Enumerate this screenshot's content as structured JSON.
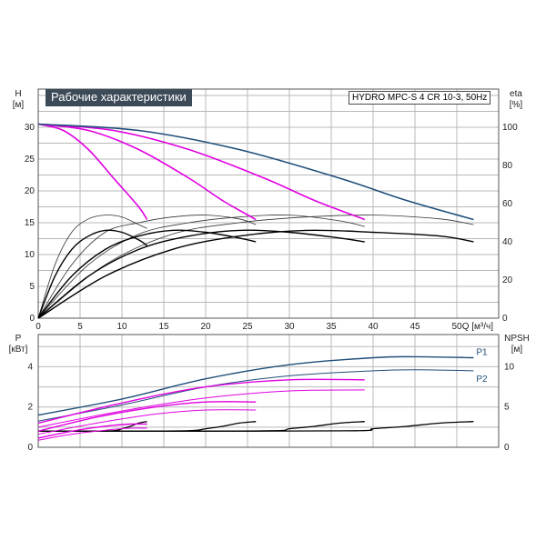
{
  "chart_data": [
    {
      "type": "line",
      "title": "Рабочие характеристики",
      "model": "HYDRO MPC-S 4 CR 10-3, 50Hz",
      "ylabel": "H",
      "yunit": "[м]",
      "y2label": "eta",
      "y2unit": "[%]",
      "xlabel": "Q",
      "xunit": "[м³/ч]",
      "xlim": [
        0,
        55
      ],
      "ylim": [
        0,
        36
      ],
      "y2lim": [
        0,
        120
      ],
      "xticks": [
        0,
        5,
        10,
        15,
        20,
        25,
        30,
        35,
        40,
        45,
        50
      ],
      "yticks": [
        0,
        5,
        10,
        15,
        20,
        25,
        30
      ],
      "y2ticks": [
        0,
        20,
        40,
        60,
        80,
        100
      ],
      "grid": true,
      "colors": {
        "head_full": "#1f4e79",
        "head_partial": "#e000e0",
        "efficiency": "#000000",
        "efficiency_thin": "#333333"
      },
      "head_curves": [
        {
          "pumps": 1,
          "x": [
            0,
            3,
            6,
            9,
            12,
            13
          ],
          "y": [
            30.5,
            29.5,
            26.5,
            22,
            17.5,
            15.5
          ]
        },
        {
          "pumps": 2,
          "x": [
            0,
            6,
            12,
            18,
            22,
            26
          ],
          "y": [
            30.5,
            29.5,
            26.5,
            22,
            18.5,
            15.5
          ]
        },
        {
          "pumps": 3,
          "x": [
            0,
            9,
            18,
            27,
            33,
            39
          ],
          "y": [
            30.5,
            29.5,
            26.5,
            22,
            18.5,
            15.5
          ]
        },
        {
          "pumps": 4,
          "x": [
            0,
            12,
            24,
            36,
            44,
            52
          ],
          "y": [
            30.5,
            29.5,
            26.5,
            22,
            18.5,
            15.5
          ]
        }
      ],
      "efficiency_curves": [
        {
          "pumps": 1,
          "x": [
            0,
            2,
            4,
            6,
            8,
            10,
            12,
            13
          ],
          "y": [
            0,
            22,
            36,
            43,
            46,
            45,
            41,
            38
          ]
        },
        {
          "pumps": 2,
          "x": [
            0,
            4,
            8,
            12,
            16,
            20,
            24,
            26
          ],
          "y": [
            0,
            22,
            36,
            43,
            46,
            45,
            42,
            40
          ]
        },
        {
          "pumps": 3,
          "x": [
            0,
            6,
            12,
            18,
            24,
            30,
            36,
            39
          ],
          "y": [
            0,
            22,
            36,
            43,
            46,
            45,
            42,
            40
          ]
        },
        {
          "pumps": 4,
          "x": [
            0,
            8,
            16,
            24,
            32,
            40,
            48,
            52
          ],
          "y": [
            0,
            22,
            36,
            43,
            46,
            45,
            43,
            40
          ]
        }
      ],
      "efficiency_thin_curves": [
        {
          "x": [
            0,
            2,
            4,
            6,
            8,
            10,
            12,
            13
          ],
          "y": [
            0,
            28,
            45,
            52,
            54,
            53,
            49,
            47
          ]
        },
        {
          "x": [
            0,
            4,
            8,
            12,
            16,
            20,
            24,
            26
          ],
          "y": [
            0,
            28,
            45,
            50,
            53,
            54,
            52,
            49
          ]
        },
        {
          "x": [
            0,
            6,
            12,
            18,
            24,
            30,
            36,
            39
          ],
          "y": [
            0,
            28,
            44,
            50,
            53,
            54,
            51,
            48
          ]
        },
        {
          "x": [
            0,
            8,
            16,
            24,
            32,
            40,
            48,
            52
          ],
          "y": [
            0,
            28,
            44,
            50,
            53,
            54,
            52,
            49
          ]
        }
      ]
    },
    {
      "type": "line",
      "ylabel": "P",
      "yunit": "[кВт]",
      "y2label": "NPSH",
      "y2unit": "[м]",
      "xlim": [
        0,
        55
      ],
      "ylim": [
        0,
        5.6
      ],
      "y2lim": [
        0,
        14
      ],
      "yticks": [
        0,
        2,
        4
      ],
      "y2ticks": [
        0,
        5,
        10
      ],
      "grid": true,
      "series_labels": [
        "P1",
        "P2"
      ],
      "colors": {
        "power_full": "#1f4e79",
        "power_partial": "#e000e0",
        "npsh": "#000000"
      },
      "p1_curves": [
        {
          "pumps": 4,
          "x": [
            0,
            10,
            20,
            30,
            40,
            45,
            52
          ],
          "y": [
            1.6,
            2.4,
            3.4,
            4.1,
            4.45,
            4.5,
            4.45
          ]
        },
        {
          "pumps": 3,
          "x": [
            0,
            10,
            20,
            30,
            39
          ],
          "y": [
            1.2,
            2.2,
            3.0,
            3.35,
            3.35
          ]
        },
        {
          "pumps": 2,
          "x": [
            0,
            7,
            14,
            20,
            26
          ],
          "y": [
            0.8,
            1.5,
            2.0,
            2.25,
            2.25
          ]
        },
        {
          "pumps": 1,
          "x": [
            0,
            4,
            8,
            11,
            13
          ],
          "y": [
            0.45,
            0.8,
            1.05,
            1.15,
            1.15
          ]
        }
      ],
      "p2_curves": [
        {
          "pumps": 4,
          "x": [
            0,
            10,
            20,
            30,
            40,
            45,
            52
          ],
          "y": [
            1.3,
            2.1,
            3.0,
            3.55,
            3.8,
            3.85,
            3.8
          ]
        },
        {
          "pumps": 3,
          "x": [
            0,
            10,
            20,
            30,
            39
          ],
          "y": [
            1.0,
            1.8,
            2.45,
            2.8,
            2.85
          ]
        },
        {
          "pumps": 2,
          "x": [
            0,
            7,
            14,
            20,
            26
          ],
          "y": [
            0.65,
            1.2,
            1.65,
            1.85,
            1.85
          ]
        },
        {
          "pumps": 1,
          "x": [
            0,
            4,
            8,
            11,
            13
          ],
          "y": [
            0.35,
            0.65,
            0.85,
            0.95,
            0.95
          ]
        }
      ],
      "npsh_curves": [
        {
          "pumps": 1,
          "x": [
            0,
            5,
            9,
            10,
            11,
            12,
            13
          ],
          "y": [
            2,
            2,
            2.05,
            2.3,
            2.6,
            3.0,
            3.2
          ]
        },
        {
          "pumps": 2,
          "x": [
            0,
            10,
            18,
            20,
            22,
            24,
            26
          ],
          "y": [
            2,
            2,
            2.05,
            2.3,
            2.6,
            3.0,
            3.2
          ]
        },
        {
          "pumps": 3,
          "x": [
            0,
            15,
            28,
            30,
            33,
            36,
            39
          ],
          "y": [
            2,
            2,
            2.05,
            2.3,
            2.6,
            3.0,
            3.2
          ]
        },
        {
          "pumps": 4,
          "x": [
            0,
            20,
            38,
            40,
            44,
            48,
            52
          ],
          "y": [
            2,
            2,
            2.05,
            2.3,
            2.6,
            3.0,
            3.2
          ]
        }
      ]
    }
  ]
}
